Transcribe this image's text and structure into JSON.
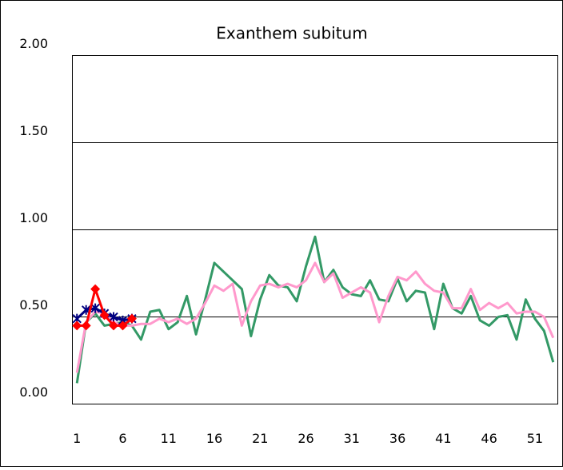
{
  "chart_data": {
    "type": "line",
    "title": "Exanthem subitum",
    "x": [
      1,
      2,
      3,
      4,
      5,
      6,
      7,
      8,
      9,
      10,
      11,
      12,
      13,
      14,
      15,
      16,
      17,
      18,
      19,
      20,
      21,
      22,
      23,
      24,
      25,
      26,
      27,
      28,
      29,
      30,
      31,
      32,
      33,
      34,
      35,
      36,
      37,
      38,
      39,
      40,
      41,
      42,
      43,
      44,
      45,
      46,
      47,
      48,
      49,
      50,
      51,
      52,
      53
    ],
    "xlim": [
      0.5,
      53.5
    ],
    "xticks": [
      1,
      6,
      11,
      16,
      21,
      26,
      31,
      36,
      41,
      46,
      51
    ],
    "ylim": [
      0,
      2
    ],
    "yticks": [
      {
        "value": 0,
        "label": "0.00"
      },
      {
        "value": 0.5,
        "label": "0.50"
      },
      {
        "value": 1,
        "label": "1.00"
      },
      {
        "value": 1.5,
        "label": "1.50"
      },
      {
        "value": 2,
        "label": "2.00"
      }
    ],
    "grid": true,
    "series": [
      {
        "color": "#339966",
        "marker": "none",
        "values": [
          0.12,
          0.47,
          0.52,
          0.45,
          0.46,
          0.47,
          0.45,
          0.37,
          0.53,
          0.54,
          0.43,
          0.47,
          0.62,
          0.4,
          0.6,
          0.81,
          0.76,
          0.71,
          0.66,
          0.39,
          0.6,
          0.74,
          0.68,
          0.67,
          0.59,
          0.79,
          0.96,
          0.7,
          0.77,
          0.67,
          0.63,
          0.62,
          0.71,
          0.6,
          0.59,
          0.72,
          0.59,
          0.65,
          0.64,
          0.43,
          0.69,
          0.55,
          0.52,
          0.62,
          0.48,
          0.45,
          0.5,
          0.51,
          0.37,
          0.6,
          0.49,
          0.42,
          0.24
        ]
      },
      {
        "color": "#ff99cc",
        "marker": "none",
        "values": [
          0.18,
          0.47,
          0.53,
          0.52,
          0.47,
          0.45,
          0.45,
          0.46,
          0.46,
          0.49,
          0.47,
          0.49,
          0.46,
          0.49,
          0.58,
          0.68,
          0.65,
          0.69,
          0.45,
          0.59,
          0.68,
          0.69,
          0.67,
          0.69,
          0.67,
          0.71,
          0.81,
          0.7,
          0.75,
          0.61,
          0.64,
          0.67,
          0.64,
          0.47,
          0.62,
          0.73,
          0.71,
          0.76,
          0.69,
          0.65,
          0.64,
          0.55,
          0.55,
          0.66,
          0.54,
          0.58,
          0.55,
          0.58,
          0.52,
          0.53,
          0.53,
          0.5,
          0.38
        ]
      },
      {
        "color": "#000080",
        "marker": "asterisk",
        "values": [
          0.49,
          0.54,
          0.55,
          0.52,
          0.5,
          0.48,
          0.49,
          null,
          null,
          null,
          null,
          null,
          null,
          null,
          null,
          null,
          null,
          null,
          null,
          null,
          null,
          null,
          null,
          null,
          null,
          null,
          null,
          null,
          null,
          null,
          null,
          null,
          null,
          null,
          null,
          null,
          null,
          null,
          null,
          null,
          null,
          null,
          null,
          null,
          null,
          null,
          null,
          null,
          null,
          null,
          null,
          null,
          null
        ]
      },
      {
        "color": "#ff0000",
        "marker": "diamond",
        "values": [
          0.45,
          0.45,
          0.66,
          0.51,
          0.45,
          0.45,
          0.49,
          null,
          null,
          null,
          null,
          null,
          null,
          null,
          null,
          null,
          null,
          null,
          null,
          null,
          null,
          null,
          null,
          null,
          null,
          null,
          null,
          null,
          null,
          null,
          null,
          null,
          null,
          null,
          null,
          null,
          null,
          null,
          null,
          null,
          null,
          null,
          null,
          null,
          null,
          null,
          null,
          null,
          null,
          null,
          null,
          null,
          null
        ]
      }
    ]
  }
}
